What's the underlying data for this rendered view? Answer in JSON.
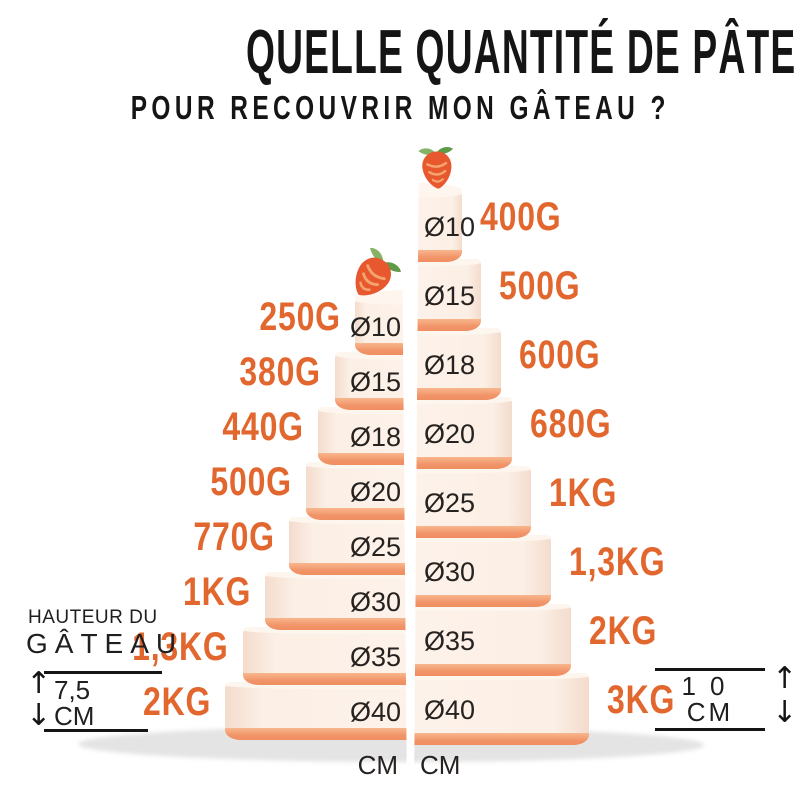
{
  "title": {
    "line1": "QUELLE QUANTITÉ DE PÂTE À SUCRE",
    "line2": "POUR RECOUVRIR MON GÂTEAU ?"
  },
  "left_cake": {
    "tiers": [
      {
        "diameter": "Ø10",
        "weight": "250G"
      },
      {
        "diameter": "Ø15",
        "weight": "380G"
      },
      {
        "diameter": "Ø18",
        "weight": "440G"
      },
      {
        "diameter": "Ø20",
        "weight": "500G"
      },
      {
        "diameter": "Ø25",
        "weight": "770G"
      },
      {
        "diameter": "Ø30",
        "weight": "1KG"
      },
      {
        "diameter": "Ø35",
        "weight": "1,3KG"
      },
      {
        "diameter": "Ø40",
        "weight": "2KG"
      }
    ],
    "axis_unit": "CM"
  },
  "right_cake": {
    "tiers": [
      {
        "diameter": "Ø10",
        "weight": "400G"
      },
      {
        "diameter": "Ø15",
        "weight": "500G"
      },
      {
        "diameter": "Ø18",
        "weight": "600G"
      },
      {
        "diameter": "Ø20",
        "weight": "680G"
      },
      {
        "diameter": "Ø25",
        "weight": "1KG"
      },
      {
        "diameter": "Ø30",
        "weight": "1,3KG"
      },
      {
        "diameter": "Ø35",
        "weight": "2KG"
      },
      {
        "diameter": "Ø40",
        "weight": "3KG"
      }
    ],
    "axis_unit": "CM"
  },
  "height_legend_left": {
    "label_line1": "HAUTEUR DU",
    "label_line2": "GÂTEAU",
    "value": "7,5",
    "unit": "CM"
  },
  "height_legend_right": {
    "value": "10",
    "unit": "CM"
  },
  "icons": {
    "topper": "strawberry-icon"
  },
  "colors": {
    "accent_orange": "#E2672F",
    "band_orange": "#F2956A",
    "cake_cream": "#FCEFE5",
    "cake_top": "#FDF5EE",
    "text_dark": "#151515",
    "shadow_gray": "#E4E4E4",
    "leaf_green": "#7FAF5F",
    "berry_red": "#E8582E"
  },
  "chart_data": {
    "type": "table",
    "title": "Quelle quantité de pâte à sucre pour recouvrir mon gâteau ?",
    "categories_diameter_cm": [
      10,
      15,
      18,
      20,
      25,
      30,
      35,
      40
    ],
    "series": [
      {
        "name": "Hauteur du gâteau 7,5 CM",
        "values_g": [
          250,
          380,
          440,
          500,
          770,
          1000,
          1300,
          2000
        ]
      },
      {
        "name": "Hauteur du gâteau 10 CM",
        "values_g": [
          400,
          500,
          600,
          680,
          1000,
          1300,
          2000,
          3000
        ]
      }
    ]
  }
}
